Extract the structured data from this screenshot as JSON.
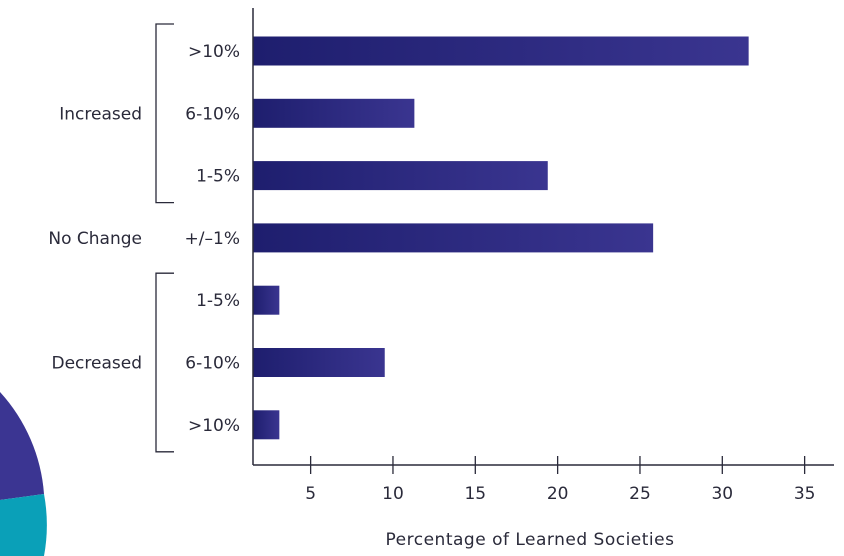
{
  "chart_data": {
    "type": "bar",
    "orientation": "horizontal",
    "categories": [
      ">10%",
      "6-10%",
      "1-5%",
      "+/–1%",
      "1-5%",
      "6-10%",
      ">10%"
    ],
    "values": [
      31.6,
      11.3,
      19.4,
      25.8,
      3.1,
      9.5,
      3.1
    ],
    "groups": [
      {
        "label": "Increased",
        "rows": [
          0,
          1,
          2
        ],
        "bracket": true
      },
      {
        "label": "No Change",
        "rows": [
          3
        ],
        "bracket": false
      },
      {
        "label": "Decreased",
        "rows": [
          4,
          5,
          6
        ],
        "bracket": true
      }
    ],
    "xlabel": "Percentage of Learned Societies",
    "xlim": [
      1.5,
      36
    ],
    "xticks": [
      5,
      10,
      15,
      20,
      25,
      30,
      35
    ],
    "grid": false,
    "colors": {
      "bar_start": "#1e1e6e",
      "bar_end": "#3a3590",
      "text": "#2a2a3a",
      "axis": "#2a2a3a",
      "pie_purple": "#3b3592",
      "pie_teal": "#0aa0b8"
    }
  }
}
